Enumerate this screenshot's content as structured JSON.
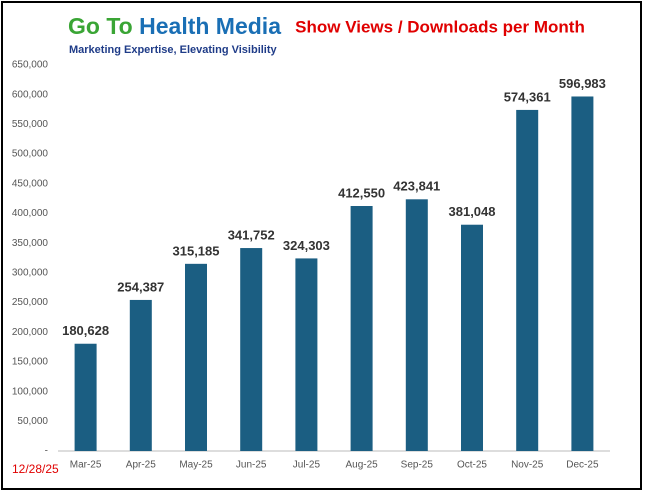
{
  "logo": {
    "part1": "Go To",
    "part2": "Health Media",
    "tagline": "Marketing Expertise, Elevating Visibility"
  },
  "footer": {
    "date": "12/28/25"
  },
  "chart_data": {
    "type": "bar",
    "title": "Show Views / Downloads per Month",
    "categories": [
      "Mar-25",
      "Apr-25",
      "May-25",
      "Jun-25",
      "Jul-25",
      "Aug-25",
      "Sep-25",
      "Oct-25",
      "Nov-25",
      "Dec-25"
    ],
    "values": [
      180628,
      254387,
      315185,
      341752,
      324303,
      412550,
      423841,
      381048,
      574361,
      596983
    ],
    "value_labels": [
      "180,628",
      "254,387",
      "315,185",
      "341,752",
      "324,303",
      "412,550",
      "423,841",
      "381,048",
      "574,361",
      "596,983"
    ],
    "color": "#1b5e82",
    "ylim": [
      0,
      650000
    ],
    "yticks": [
      {
        "value": 0,
        "label": "-"
      },
      {
        "value": 50000,
        "label": "50,000"
      },
      {
        "value": 100000,
        "label": "100,000"
      },
      {
        "value": 150000,
        "label": "150,000"
      },
      {
        "value": 200000,
        "label": "200,000"
      },
      {
        "value": 250000,
        "label": "250,000"
      },
      {
        "value": 300000,
        "label": "300,000"
      },
      {
        "value": 350000,
        "label": "350,000"
      },
      {
        "value": 400000,
        "label": "400,000"
      },
      {
        "value": 450000,
        "label": "450,000"
      },
      {
        "value": 500000,
        "label": "500,000"
      },
      {
        "value": 550000,
        "label": "550,000"
      },
      {
        "value": 600000,
        "label": "600,000"
      },
      {
        "value": 650000,
        "label": "650,000"
      }
    ],
    "grid": false
  }
}
